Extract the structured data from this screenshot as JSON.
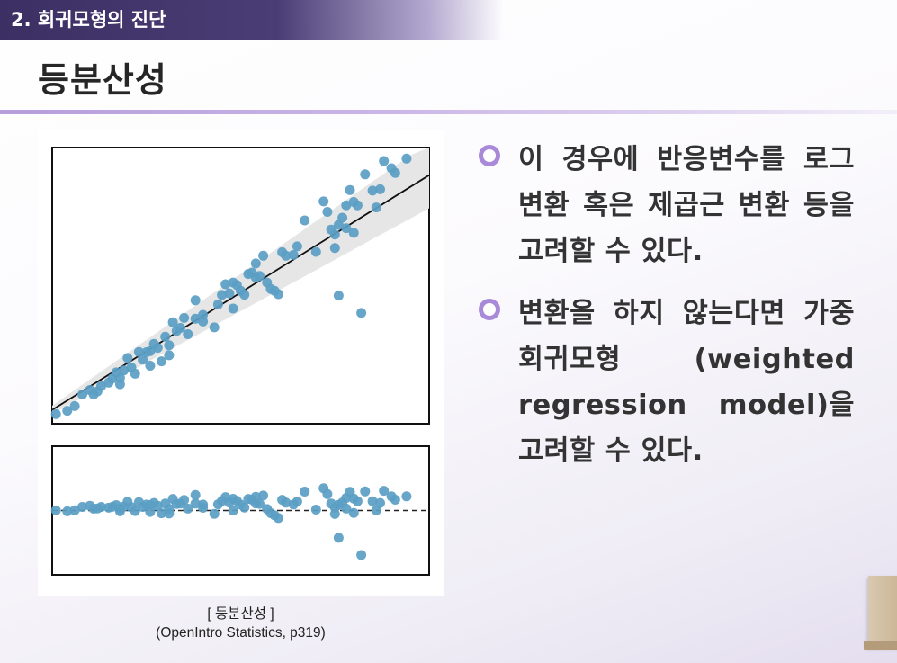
{
  "header": {
    "section_title": "2. 회귀모형의 진단",
    "page_title": "등분산성"
  },
  "figure": {
    "caption_line1": "[ 등분산성 ]",
    "caption_line2": "(OpenIntro Statistics, p319)"
  },
  "bullets": [
    "이 경우에 반응변수를 로그 변환 혹은 제곱근 변환 등을 고려할 수 있다.",
    "변환을 하지 않는다면 가중회귀모형 (weighted regression model)을 고려할 수 있다."
  ],
  "colors": {
    "point": "#5b9ec4",
    "band": "#e6e6e6",
    "accent": "#a88ad8",
    "header_bg": "#3b2f63"
  },
  "chart_data": [
    {
      "type": "scatter",
      "title": "",
      "xlabel": "",
      "ylabel": "",
      "xlim": [
        0,
        100
      ],
      "ylim": [
        0,
        100
      ],
      "fit_line": {
        "intercept": 5,
        "slope": 0.85
      },
      "band_halfwidth": {
        "at_x0": 1.5,
        "at_x100": 12
      },
      "x": [
        1,
        4,
        6,
        8,
        10,
        11,
        12,
        13,
        15,
        16,
        17,
        18,
        18,
        19,
        20,
        21,
        22,
        23,
        24,
        25,
        26,
        26,
        27,
        28,
        29,
        30,
        31,
        31,
        32,
        33,
        34,
        35,
        36,
        38,
        38,
        40,
        40,
        43,
        44,
        45,
        46,
        47,
        48,
        48,
        49,
        50,
        51,
        52,
        53,
        54,
        54,
        55,
        56,
        57,
        58,
        59,
        60,
        61,
        62,
        64,
        65,
        67,
        70,
        72,
        73,
        74,
        75,
        75,
        76,
        76,
        77,
        78,
        78,
        79,
        80,
        80,
        81,
        82,
        83,
        85,
        86,
        87,
        88,
        90,
        91,
        94
      ],
      "y": [
        3.5,
        4.7,
        6.4,
        10.6,
        12.2,
        10.6,
        11.7,
        13.6,
        14.9,
        16.4,
        18.6,
        14.3,
        16.6,
        19.3,
        23.8,
        20.4,
        18.1,
        26.0,
        23.2,
        25.9,
        21.0,
        26.3,
        28.9,
        27.5,
        22.6,
        31.5,
        28.4,
        24.8,
        36.7,
        33.6,
        34.7,
        38.3,
        32.4,
        38.0,
        44.7,
        39.4,
        37.0,
        34.9,
        43.2,
        46.6,
        50.5,
        47.2,
        41.7,
        51.1,
        50.2,
        48.1,
        46.7,
        54.2,
        54.7,
        58.0,
        52.9,
        53.5,
        60.8,
        51.1,
        48.8,
        48.1,
        46.9,
        62.1,
        60.8,
        61.1,
        64.2,
        73.6,
        62.2,
        80.5,
        76.7,
        70.3,
        63.6,
        68.5,
        72.0,
        46.4,
        74.6,
        79.1,
        70.8,
        84.6,
        69.1,
        80.3,
        79.1,
        40.1,
        90.3,
        84.4,
        78.3,
        84.9,
        95.1,
        92.5,
        90.8,
        96.0
      ]
    },
    {
      "type": "scatter",
      "title": "",
      "xlabel": "",
      "ylabel": "",
      "xlim": [
        0,
        100
      ],
      "ylim": [
        -50,
        50
      ],
      "reference_line": {
        "y": 0,
        "style": "dashed"
      },
      "x": [
        1,
        4,
        6,
        8,
        10,
        11,
        12,
        13,
        15,
        16,
        17,
        18,
        18,
        19,
        20,
        21,
        22,
        23,
        24,
        25,
        26,
        26,
        27,
        28,
        29,
        30,
        31,
        31,
        32,
        33,
        34,
        35,
        36,
        38,
        38,
        40,
        40,
        43,
        44,
        45,
        46,
        47,
        48,
        48,
        49,
        50,
        51,
        52,
        53,
        54,
        54,
        55,
        56,
        57,
        58,
        59,
        60,
        61,
        62,
        64,
        65,
        67,
        70,
        72,
        73,
        74,
        75,
        75,
        76,
        76,
        77,
        78,
        78,
        79,
        80,
        80,
        81,
        82,
        83,
        85,
        86,
        87,
        88,
        90,
        91,
        94
      ],
      "y": [
        0.1,
        -0.6,
        0.2,
        2.8,
        3.7,
        1.4,
        1.6,
        2.8,
        2.2,
        2.9,
        4.2,
        -0.6,
        1.6,
        3.1,
        6.8,
        2.6,
        -0.4,
        6.5,
        2.8,
        4.6,
        -1.1,
        4.2,
        5.9,
        3.7,
        -2.2,
        5.4,
        1.3,
        -2.4,
        9.0,
        5.1,
        5.4,
        8.2,
        1.5,
        5.4,
        12.0,
        4.6,
        2.1,
        -2.6,
        4.8,
        7.4,
        10.4,
        6.2,
        -0.1,
        9.1,
        7.5,
        4.6,
        2.3,
        9.0,
        8.4,
        10.7,
        5.5,
        5.2,
        11.6,
        1.1,
        -2.1,
        -3.8,
        -5.9,
        8.3,
        6.1,
        4.7,
        7.0,
        14.7,
        0.7,
        17.3,
        12.7,
        5.4,
        -2.7,
        2.2,
        4.4,
        -21.2,
        6.2,
        9.8,
        1.5,
        14.5,
        -1.9,
        9.3,
        7.2,
        -34.6,
        14.8,
        7.2,
        0.2,
        5.9,
        15.3,
        11.0,
        8.4,
        11.0
      ]
    }
  ]
}
